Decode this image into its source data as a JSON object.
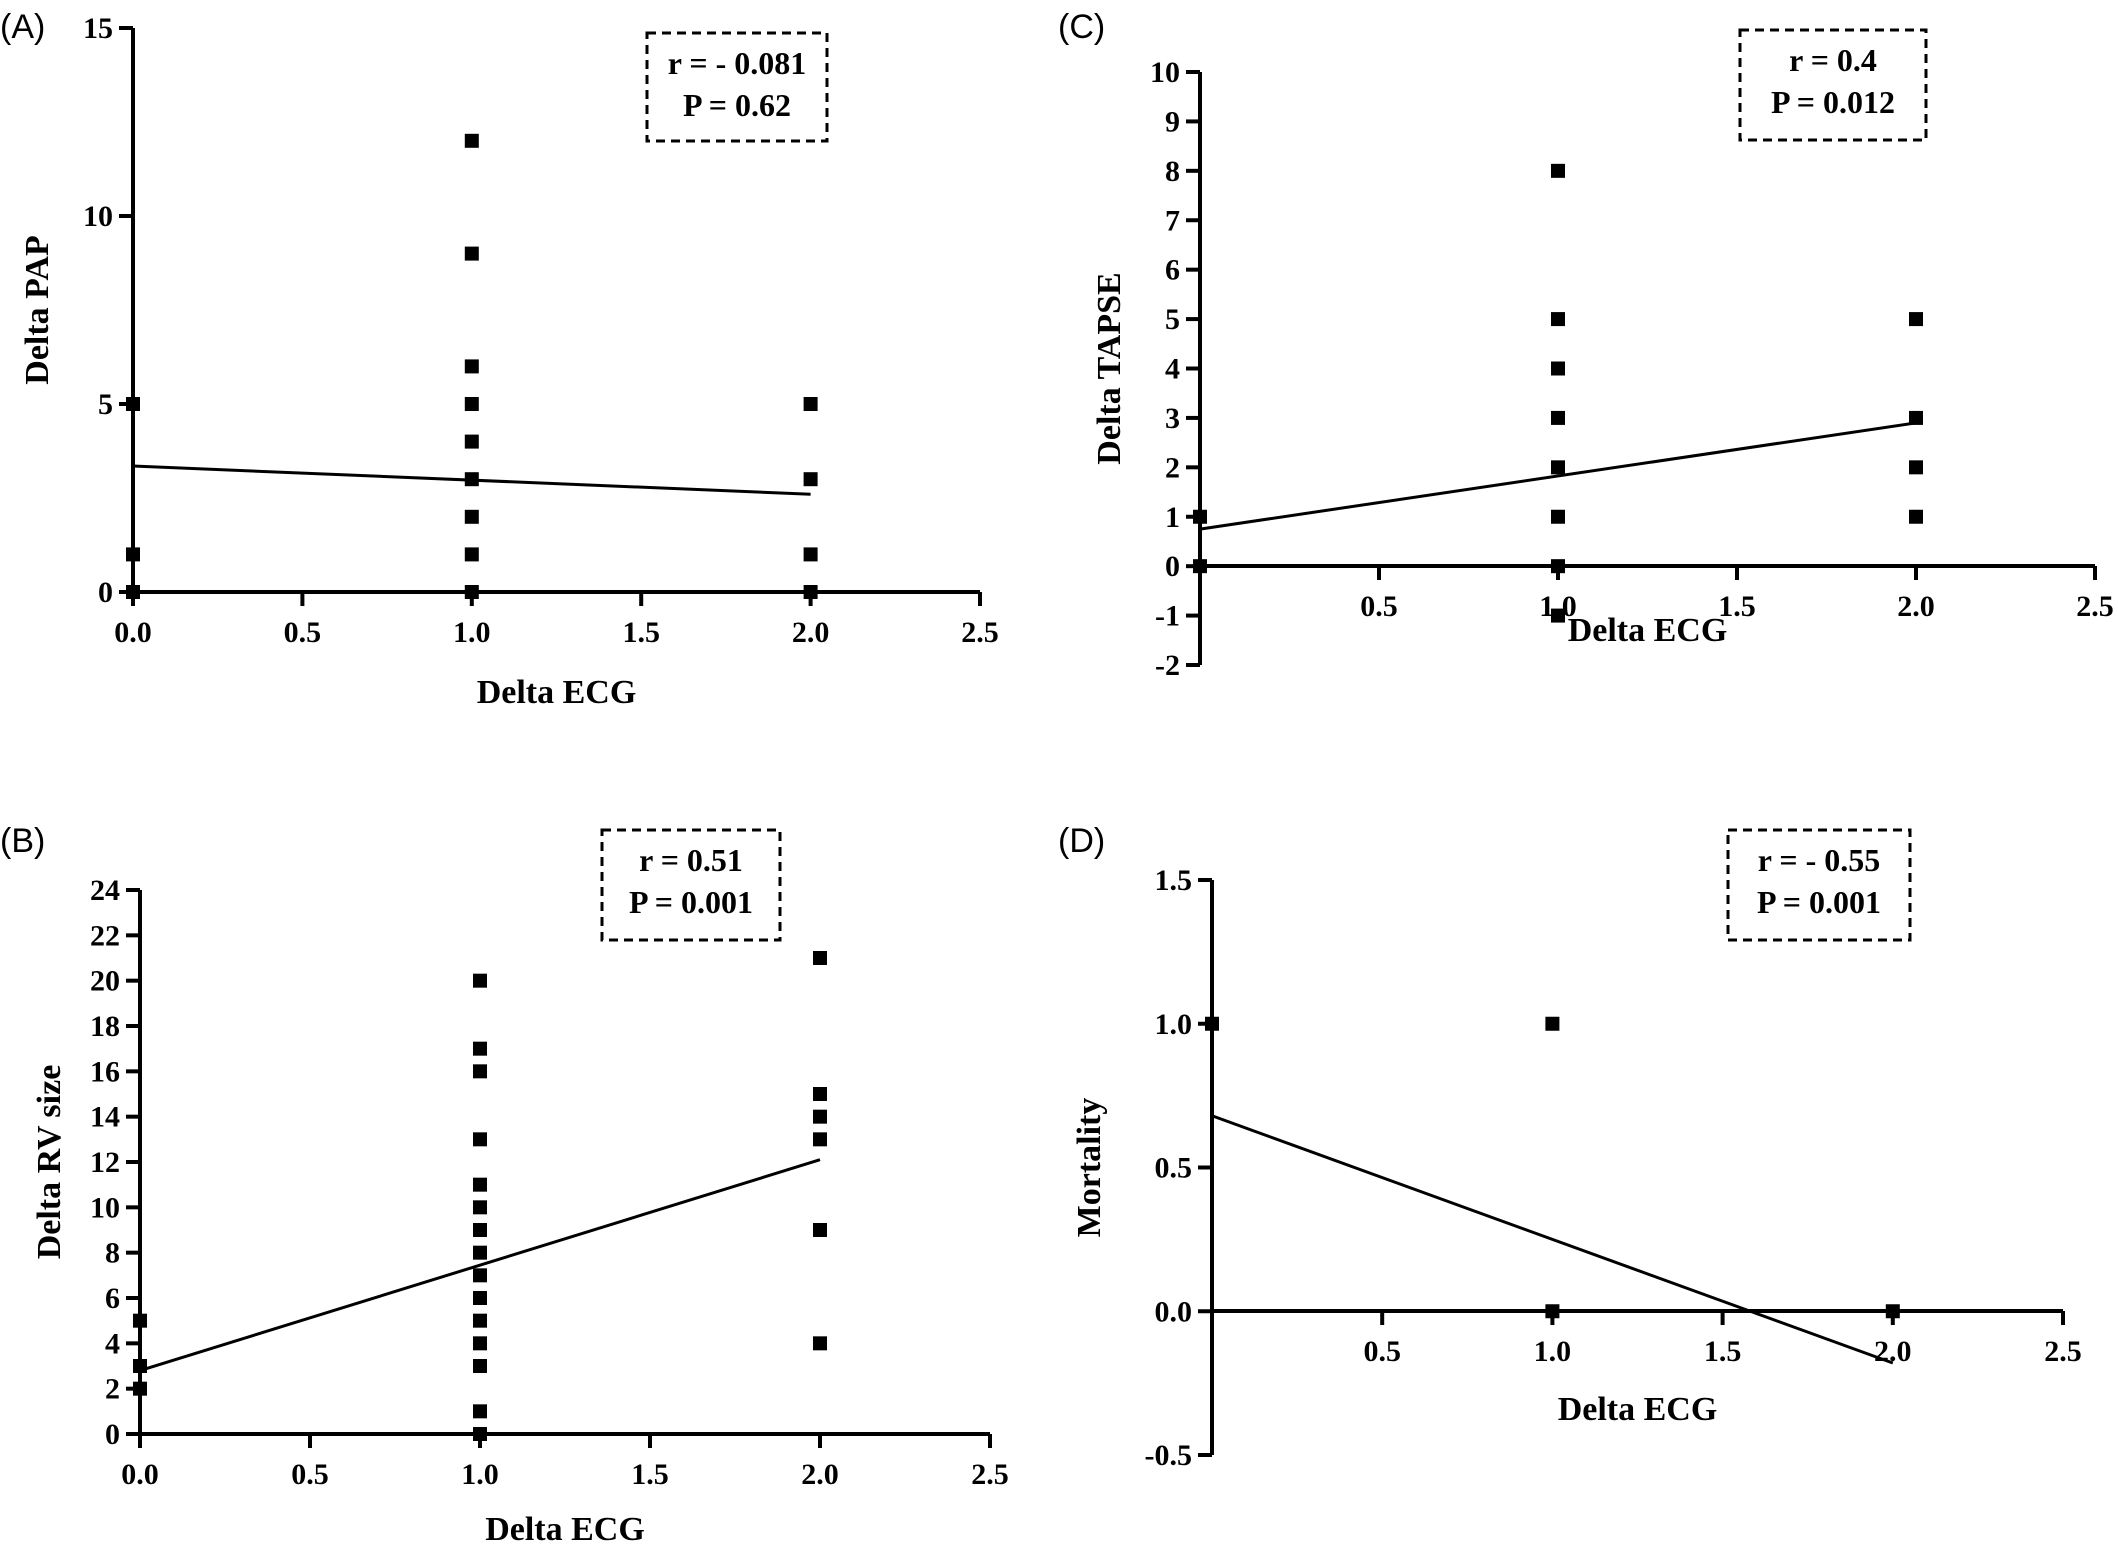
{
  "chart_data": [
    {
      "id": "A",
      "type": "scatter",
      "panel_label": "(A)",
      "xlabel": "Delta ECG",
      "ylabel": "Delta PAP",
      "xlim": [
        0,
        2.5
      ],
      "ylim": [
        0,
        15
      ],
      "xticks": [
        "0.0",
        "0.5",
        "1.0",
        "1.5",
        "2.0",
        "2.5"
      ],
      "yticks": [
        "0",
        "5",
        "10",
        "15"
      ],
      "stats": [
        "r = - 0.081",
        "P = 0.62"
      ],
      "points": [
        [
          0,
          5
        ],
        [
          0,
          1
        ],
        [
          0,
          0
        ],
        [
          1,
          12
        ],
        [
          1,
          9
        ],
        [
          1,
          6
        ],
        [
          1,
          5
        ],
        [
          1,
          4
        ],
        [
          1,
          3
        ],
        [
          1,
          2
        ],
        [
          1,
          1
        ],
        [
          1,
          0
        ],
        [
          2,
          5
        ],
        [
          2,
          3
        ],
        [
          2,
          1
        ],
        [
          2,
          0
        ]
      ],
      "fit_line": [
        [
          0,
          3.35
        ],
        [
          2,
          2.6
        ]
      ]
    },
    {
      "id": "C",
      "type": "scatter",
      "panel_label": "(C)",
      "xlabel": "Delta ECG",
      "ylabel": "Delta TAPSE",
      "xlim": [
        0,
        2.5
      ],
      "ylim": [
        -2,
        10
      ],
      "xticks": [
        "0.5",
        "1.0",
        "1.5",
        "2.0",
        "2.5"
      ],
      "yticks": [
        "-2",
        "-1",
        "0",
        "1",
        "2",
        "3",
        "4",
        "5",
        "6",
        "7",
        "8",
        "9",
        "10"
      ],
      "stats": [
        "r = 0.4",
        "P = 0.012"
      ],
      "points": [
        [
          0,
          1
        ],
        [
          0,
          0
        ],
        [
          1,
          8
        ],
        [
          1,
          5
        ],
        [
          1,
          4
        ],
        [
          1,
          3
        ],
        [
          1,
          2
        ],
        [
          1,
          1
        ],
        [
          1,
          0
        ],
        [
          1,
          -1
        ],
        [
          2,
          5
        ],
        [
          2,
          3
        ],
        [
          2,
          2
        ],
        [
          2,
          1
        ]
      ],
      "fit_line": [
        [
          0,
          0.75
        ],
        [
          2,
          2.9
        ]
      ]
    },
    {
      "id": "B",
      "type": "scatter",
      "panel_label": "(B)",
      "xlabel": "Delta ECG",
      "ylabel": "Delta RV size",
      "xlim": [
        0,
        2.5
      ],
      "ylim": [
        0,
        24
      ],
      "xticks": [
        "0.0",
        "0.5",
        "1.0",
        "1.5",
        "2.0",
        "2.5"
      ],
      "yticks": [
        "0",
        "2",
        "4",
        "6",
        "8",
        "10",
        "12",
        "14",
        "16",
        "18",
        "20",
        "22",
        "24"
      ],
      "stats": [
        "r = 0.51",
        "P = 0.001"
      ],
      "points": [
        [
          0,
          5
        ],
        [
          0,
          3
        ],
        [
          0,
          2
        ],
        [
          1,
          20
        ],
        [
          1,
          17
        ],
        [
          1,
          16
        ],
        [
          1,
          13
        ],
        [
          1,
          11
        ],
        [
          1,
          10
        ],
        [
          1,
          9
        ],
        [
          1,
          8
        ],
        [
          1,
          7
        ],
        [
          1,
          6
        ],
        [
          1,
          5
        ],
        [
          1,
          4
        ],
        [
          1,
          3
        ],
        [
          1,
          1
        ],
        [
          1,
          0
        ],
        [
          2,
          21
        ],
        [
          2,
          15
        ],
        [
          2,
          14
        ],
        [
          2,
          13
        ],
        [
          2,
          9
        ],
        [
          2,
          4
        ]
      ],
      "fit_line": [
        [
          0,
          2.8
        ],
        [
          2,
          12.1
        ]
      ]
    },
    {
      "id": "D",
      "type": "scatter",
      "panel_label": "(D)",
      "xlabel": "Delta ECG",
      "ylabel": "Mortality",
      "xlim": [
        0,
        2.5
      ],
      "ylim": [
        -0.5,
        1.5
      ],
      "xticks": [
        "0.5",
        "1.0",
        "1.5",
        "2.0",
        "2.5"
      ],
      "yticks": [
        "-0.5",
        "0.0",
        "0.5",
        "1.0",
        "1.5"
      ],
      "stats": [
        "r = - 0.55",
        "P = 0.001"
      ],
      "points": [
        [
          0,
          1
        ],
        [
          1,
          1
        ],
        [
          1,
          0
        ],
        [
          2,
          0
        ]
      ],
      "fit_line": [
        [
          0,
          0.68
        ],
        [
          2,
          -0.18
        ]
      ]
    }
  ]
}
